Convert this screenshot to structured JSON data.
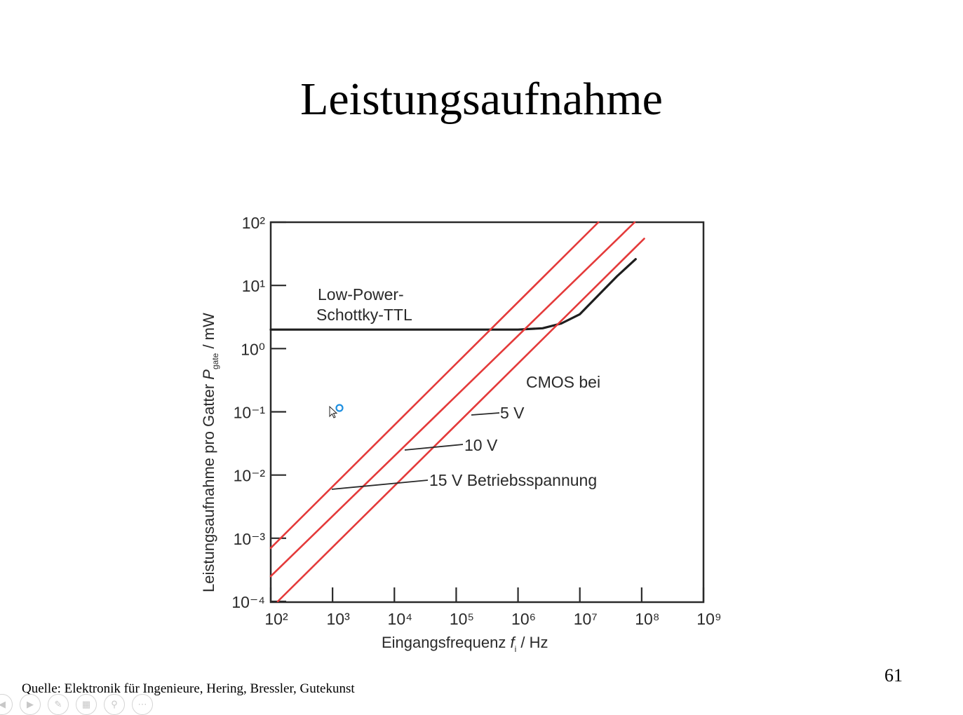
{
  "slide": {
    "title": "Leistungsaufnahme",
    "page_number": "61",
    "source": "Quelle: Elektronik für Ingenieure, Hering, Bressler, Gutekunst"
  },
  "colors": {
    "cmos": "#e43a3a",
    "ttl": "#1e1e1e",
    "axis": "#2a2a2a"
  },
  "toolbar": {
    "icons": [
      "prev-icon",
      "play-icon",
      "pen-icon",
      "slides-icon",
      "zoom-icon",
      "more-icon"
    ]
  },
  "chart_data": {
    "type": "line",
    "xscale": "log",
    "yscale": "log",
    "xlim": [
      100,
      1000000000
    ],
    "ylim": [
      0.0001,
      100
    ],
    "xlabel": "Eingangsfrequenz f_i / Hz",
    "ylabel": "Leistungsaufnahme pro Gatter P_gate / mW",
    "x_ticks": [
      "10²",
      "10³",
      "10⁴",
      "10⁵",
      "10⁶",
      "10⁷",
      "10⁸",
      "10⁹"
    ],
    "y_ticks": [
      "10²",
      "10¹",
      "10⁰",
      "10⁻¹",
      "10⁻²",
      "10⁻³",
      "10⁻⁴"
    ],
    "annotations": {
      "ttl_line1": "Low-Power-",
      "ttl_line2": "Schottky-TTL",
      "cmos_header": "CMOS bei",
      "v5": "5 V",
      "v10": "10 V",
      "v15": "15 V Betriebsspannung"
    },
    "series": [
      {
        "name": "Low-Power-Schottky-TTL",
        "x": [
          100,
          1000,
          10000,
          100000,
          1000000,
          2500000,
          5000000,
          10000000,
          20000000,
          40000000,
          80000000
        ],
        "y": [
          2,
          2,
          2,
          2,
          2,
          2.1,
          2.5,
          3.5,
          7,
          14,
          26
        ]
      },
      {
        "name": "15 V",
        "x": [
          100,
          20000000
        ],
        "y": [
          0.0007,
          100
        ]
      },
      {
        "name": "10 V",
        "x": [
          100,
          77000000
        ],
        "y": [
          0.00025,
          100
        ]
      },
      {
        "name": "5 V",
        "x": [
          130,
          110000000
        ],
        "y": [
          0.0001,
          55
        ]
      }
    ]
  }
}
